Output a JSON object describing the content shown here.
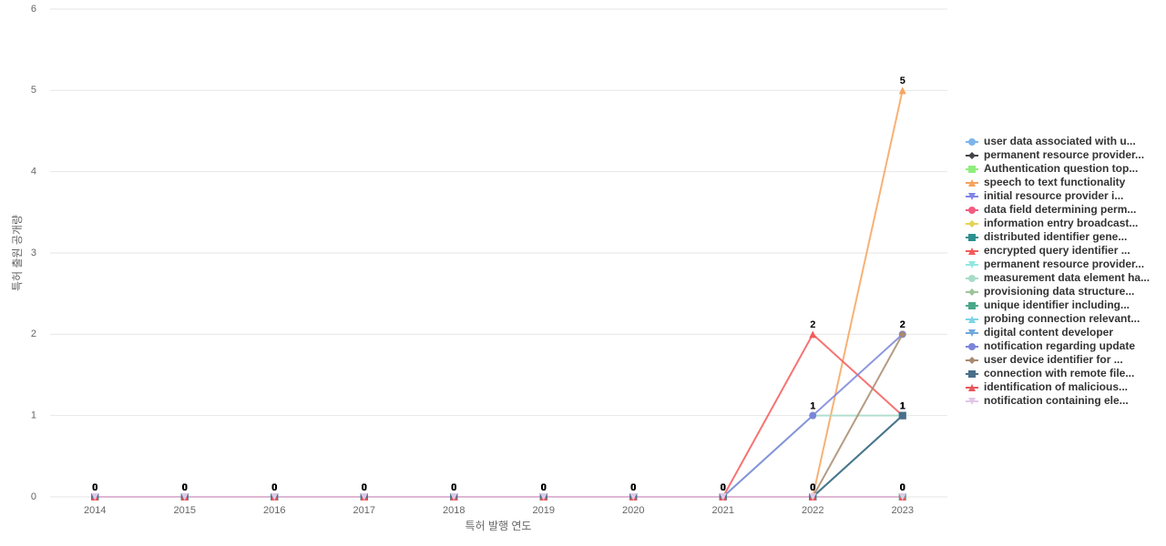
{
  "chart_data": {
    "type": "line",
    "x_label": "특허 발행 연도",
    "y_label": "특허 출원 공개량",
    "categories": [
      "2014",
      "2015",
      "2016",
      "2017",
      "2018",
      "2019",
      "2020",
      "2021",
      "2022",
      "2023"
    ],
    "ylim": [
      0,
      6
    ],
    "yticks": [
      0,
      1,
      2,
      3,
      4,
      5,
      6
    ],
    "grid": true,
    "legend": "right",
    "series": [
      {
        "name": "user data associated with u...",
        "color": "#7cb5ec",
        "marker": "circle",
        "values": [
          0,
          0,
          0,
          0,
          0,
          0,
          0,
          0,
          0,
          0
        ]
      },
      {
        "name": "permanent resource provider...",
        "color": "#434348",
        "marker": "diamond",
        "values": [
          0,
          0,
          0,
          0,
          0,
          0,
          0,
          0,
          0,
          0
        ]
      },
      {
        "name": "Authentication question top...",
        "color": "#90ed7d",
        "marker": "square",
        "values": [
          0,
          0,
          0,
          0,
          0,
          0,
          0,
          0,
          0,
          0
        ]
      },
      {
        "name": "speech to text functionality",
        "color": "#f7a35c",
        "marker": "triangle",
        "values": [
          0,
          0,
          0,
          0,
          0,
          0,
          0,
          0,
          0,
          5
        ]
      },
      {
        "name": "initial resource provider i...",
        "color": "#8085e9",
        "marker": "triangle-down",
        "values": [
          0,
          0,
          0,
          0,
          0,
          0,
          0,
          0,
          0,
          0
        ]
      },
      {
        "name": "data field determining perm...",
        "color": "#f15c80",
        "marker": "circle",
        "values": [
          0,
          0,
          0,
          0,
          0,
          0,
          0,
          0,
          0,
          0
        ]
      },
      {
        "name": "information entry broadcast...",
        "color": "#e4d354",
        "marker": "diamond",
        "values": [
          0,
          0,
          0,
          0,
          0,
          0,
          0,
          0,
          0,
          0
        ]
      },
      {
        "name": "distributed identifier gene...",
        "color": "#2b908f",
        "marker": "square",
        "values": [
          0,
          0,
          0,
          0,
          0,
          0,
          0,
          0,
          0,
          1
        ]
      },
      {
        "name": "encrypted query identifier ...",
        "color": "#f45b5b",
        "marker": "triangle",
        "values": [
          0,
          0,
          0,
          0,
          0,
          0,
          0,
          0,
          2,
          1
        ]
      },
      {
        "name": "permanent resource provider...",
        "color": "#91e8e1",
        "marker": "triangle-down",
        "values": [
          0,
          0,
          0,
          0,
          0,
          0,
          0,
          0,
          0,
          0
        ]
      },
      {
        "name": "measurement data element ha...",
        "color": "#a8dcc8",
        "marker": "circle",
        "values": [
          0,
          0,
          0,
          0,
          0,
          0,
          0,
          0,
          1,
          1
        ]
      },
      {
        "name": "provisioning data structure...",
        "color": "#9cc49a",
        "marker": "diamond",
        "values": [
          0,
          0,
          0,
          0,
          0,
          0,
          0,
          0,
          0,
          0
        ]
      },
      {
        "name": "unique identifier including...",
        "color": "#4aa88a",
        "marker": "square",
        "values": [
          0,
          0,
          0,
          0,
          0,
          0,
          0,
          0,
          0,
          0
        ]
      },
      {
        "name": "probing connection relevant...",
        "color": "#7dd3e8",
        "marker": "triangle",
        "values": [
          0,
          0,
          0,
          0,
          0,
          0,
          0,
          0,
          0,
          0
        ]
      },
      {
        "name": "digital content developer",
        "color": "#6fa8dc",
        "marker": "triangle-down",
        "values": [
          0,
          0,
          0,
          0,
          0,
          0,
          0,
          0,
          0,
          0
        ]
      },
      {
        "name": "notification regarding update",
        "color": "#7b85d9",
        "marker": "circle",
        "values": [
          0,
          0,
          0,
          0,
          0,
          0,
          0,
          0,
          1,
          2
        ]
      },
      {
        "name": "user device identifier for ...",
        "color": "#a88a6d",
        "marker": "diamond",
        "values": [
          0,
          0,
          0,
          0,
          0,
          0,
          0,
          0,
          0,
          2
        ]
      },
      {
        "name": "connection with remote file...",
        "color": "#4a6f8a",
        "marker": "square",
        "values": [
          0,
          0,
          0,
          0,
          0,
          0,
          0,
          0,
          0,
          1
        ]
      },
      {
        "name": "identification of malicious...",
        "color": "#e8575a",
        "marker": "triangle",
        "values": [
          0,
          0,
          0,
          0,
          0,
          0,
          0,
          0,
          0,
          0
        ]
      },
      {
        "name": "notification containing ele...",
        "color": "#e0c8e8",
        "marker": "triangle-down",
        "values": [
          0,
          0,
          0,
          0,
          0,
          0,
          0,
          0,
          0,
          0
        ]
      }
    ]
  }
}
